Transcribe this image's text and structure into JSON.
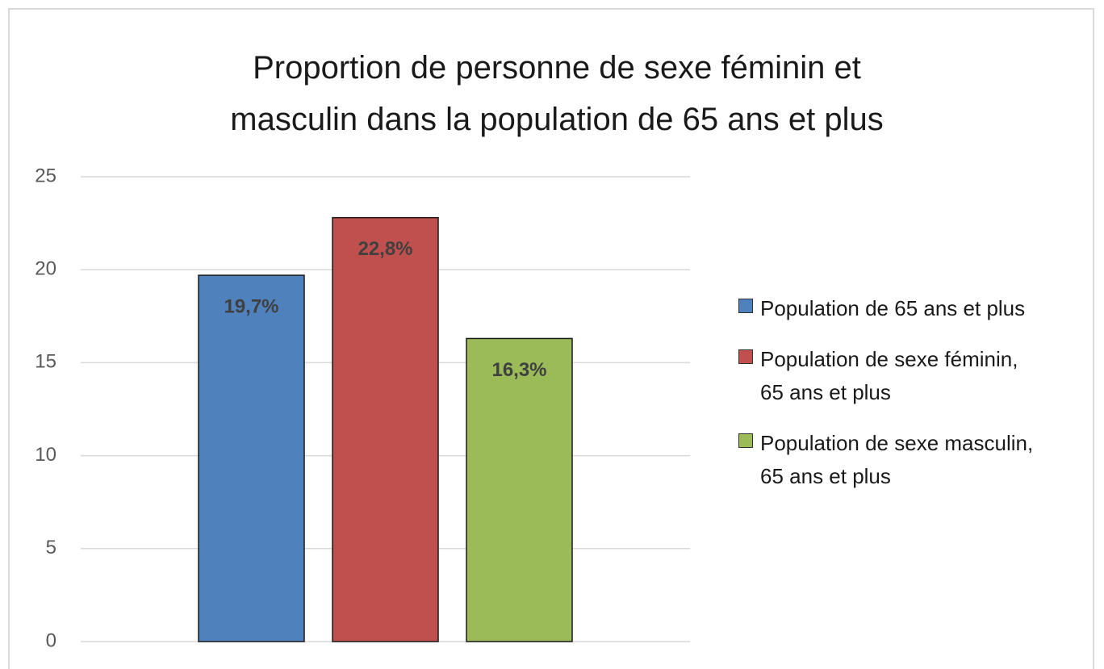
{
  "chart_data": {
    "type": "bar",
    "title": "Proportion de personne de sexe féminin et masculin dans la population de 65 ans et plus",
    "categories": [
      null
    ],
    "series": [
      {
        "name": "Population de 65 ans et plus",
        "color": "#4f81bd",
        "values": [
          19.7
        ],
        "value_labels": [
          "19,7%"
        ]
      },
      {
        "name": "Population de sexe féminin, 65 ans et plus",
        "color": "#c0504d",
        "values": [
          22.8
        ],
        "value_labels": [
          "22,8%"
        ]
      },
      {
        "name": "Population de sexe masculin, 65 ans et plus",
        "color": "#9bbb59",
        "values": [
          16.3
        ],
        "value_labels": [
          "16,3%"
        ]
      }
    ],
    "ylim": [
      0,
      25
    ],
    "yticks": [
      0,
      5,
      10,
      15,
      20,
      25
    ],
    "grid": true,
    "legend": "right"
  }
}
